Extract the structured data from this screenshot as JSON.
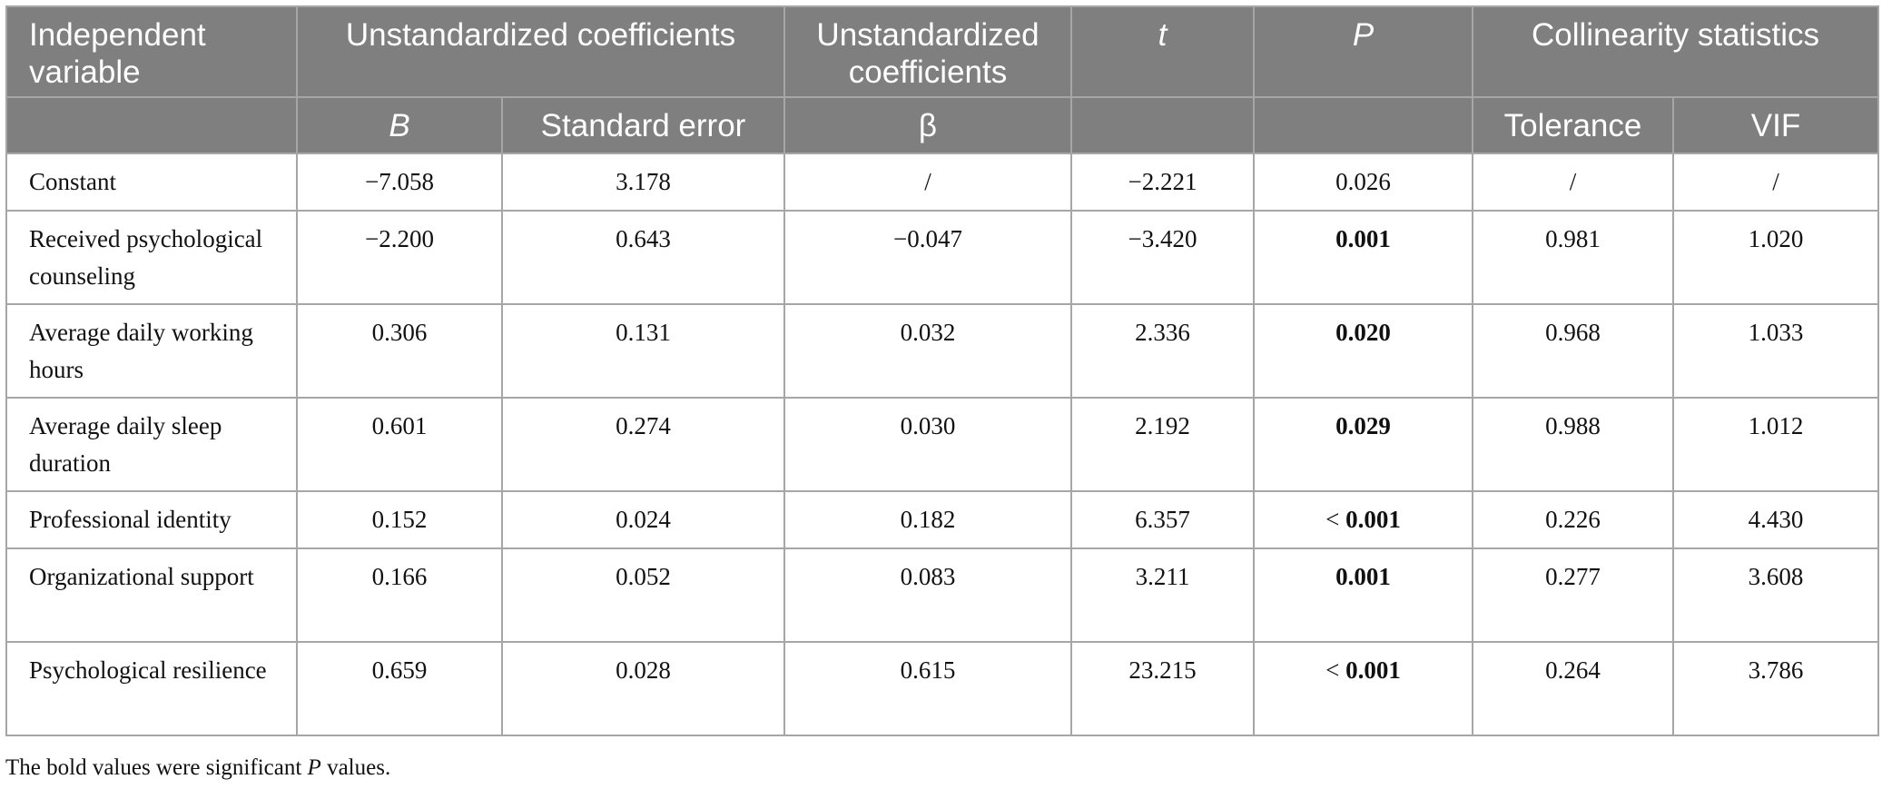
{
  "header": {
    "independent_variable": "Independent variable",
    "unstd_coef": "Unstandardized coefficients",
    "unstd_coef_2": "Unstandardized coefficients",
    "t": "t",
    "p": "P",
    "collinearity": "Collinearity statistics",
    "b": "B",
    "standard_error": "Standard error",
    "beta": "β",
    "tolerance": "Tolerance",
    "vif": "VIF"
  },
  "rows": [
    {
      "variable": "Constant",
      "b": "−7.058",
      "se": "3.178",
      "beta": "/",
      "t": "−2.221",
      "p_prefix": "",
      "p": "0.026",
      "p_bold": false,
      "tolerance": "/",
      "vif": "/"
    },
    {
      "variable": "Received psychological counseling",
      "b": "−2.200",
      "se": "0.643",
      "beta": "−0.047",
      "t": "−3.420",
      "p_prefix": "",
      "p": "0.001",
      "p_bold": true,
      "tolerance": "0.981",
      "vif": "1.020"
    },
    {
      "variable": "Average daily working hours",
      "b": "0.306",
      "se": "0.131",
      "beta": "0.032",
      "t": "2.336",
      "p_prefix": "",
      "p": "0.020",
      "p_bold": true,
      "tolerance": "0.968",
      "vif": "1.033"
    },
    {
      "variable": "Average daily sleep duration",
      "b": "0.601",
      "se": "0.274",
      "beta": "0.030",
      "t": "2.192",
      "p_prefix": "",
      "p": "0.029",
      "p_bold": true,
      "tolerance": "0.988",
      "vif": "1.012"
    },
    {
      "variable": "Professional identity",
      "b": "0.152",
      "se": "0.024",
      "beta": "0.182",
      "t": "6.357",
      "p_prefix": "< ",
      "p": "0.001",
      "p_bold": true,
      "tolerance": "0.226",
      "vif": "4.430"
    },
    {
      "variable": "Organizational support",
      "b": "0.166",
      "se": "0.052",
      "beta": "0.083",
      "t": "3.211",
      "p_prefix": "",
      "p": "0.001",
      "p_bold": true,
      "tolerance": "0.277",
      "vif": "3.608"
    },
    {
      "variable": "Psychological resilience",
      "b": "0.659",
      "se": "0.028",
      "beta": "0.615",
      "t": "23.215",
      "p_prefix": "< ",
      "p": "0.001",
      "p_bold": true,
      "tolerance": "0.264",
      "vif": "3.786"
    }
  ],
  "footnote": {
    "before": "The bold values were significant ",
    "italic": "P",
    "after": " values."
  },
  "colors": {
    "header_bg": "#7f7f7f",
    "border": "#a6a6a6"
  }
}
